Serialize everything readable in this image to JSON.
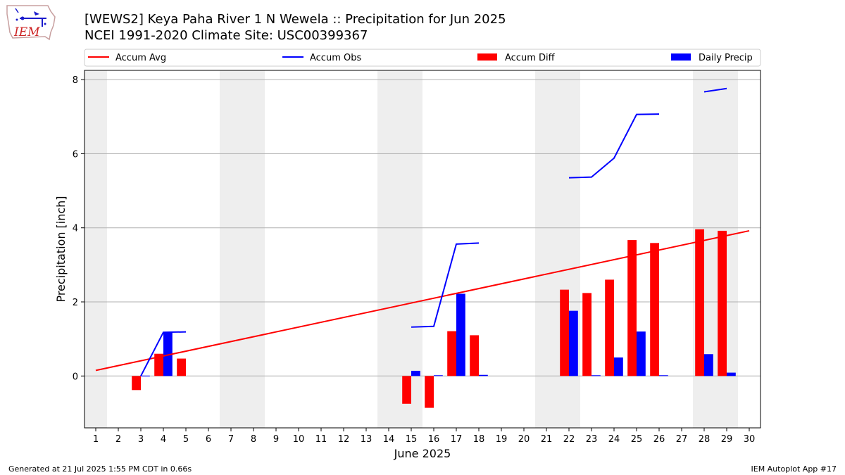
{
  "logo": {
    "text": "IEM"
  },
  "title": {
    "line1": "[WEWS2] Keya Paha River 1 N Wewela :: Precipitation for Jun 2025",
    "line2": "NCEI 1991-2020 Climate Site: USC00399367"
  },
  "footer": {
    "left": "Generated at 21 Jul 2025 1:55 PM CDT in 0.66s",
    "right": "IEM Autoplot App #17"
  },
  "colors": {
    "accum_avg": "#ff0000",
    "accum_obs": "#0000ff",
    "accum_diff": "#ff0000",
    "daily_precip": "#0000ff",
    "weekend_band": "#eeeeee",
    "grid": "#b0b0b0"
  },
  "chart_data": {
    "type": "bar",
    "xlabel": "June 2025",
    "ylabel": "Precipitation [inch]",
    "xlim": [
      0.5,
      30.5
    ],
    "ylim": [
      -1.4,
      8.25
    ],
    "x_ticks": [
      1,
      2,
      3,
      4,
      5,
      6,
      7,
      8,
      9,
      10,
      11,
      12,
      13,
      14,
      15,
      16,
      17,
      18,
      19,
      20,
      21,
      22,
      23,
      24,
      25,
      26,
      27,
      28,
      29,
      30
    ],
    "y_ticks": [
      0,
      2,
      4,
      6,
      8
    ],
    "grid": "y",
    "weekend_bands": [
      [
        0.5,
        1.5
      ],
      [
        6.5,
        8.5
      ],
      [
        13.5,
        15.5
      ],
      [
        20.5,
        22.5
      ],
      [
        27.5,
        29.5
      ]
    ],
    "legend": {
      "position": "top",
      "entries": [
        {
          "label": "Accum Avg",
          "kind": "line",
          "color": "#ff0000"
        },
        {
          "label": "Accum Obs",
          "kind": "line",
          "color": "#0000ff"
        },
        {
          "label": "Accum Diff",
          "kind": "bar",
          "color": "#ff0000"
        },
        {
          "label": "Daily Precip",
          "kind": "bar",
          "color": "#0000ff"
        }
      ]
    },
    "series": [
      {
        "name": "Accum Avg",
        "kind": "line",
        "points": [
          [
            1,
            0.15
          ],
          [
            30,
            3.92
          ]
        ]
      },
      {
        "name": "Accum Obs",
        "kind": "line",
        "segments": [
          [
            [
              3,
              0.0
            ],
            [
              4,
              1.18
            ],
            [
              5,
              1.19
            ]
          ],
          [
            [
              15,
              1.32
            ],
            [
              16,
              1.34
            ],
            [
              17,
              3.56
            ],
            [
              18,
              3.59
            ]
          ],
          [
            [
              22,
              5.35
            ],
            [
              23,
              5.37
            ],
            [
              24,
              5.88
            ],
            [
              25,
              7.06
            ],
            [
              26,
              7.07
            ]
          ],
          [
            [
              28,
              7.67
            ],
            [
              29,
              7.76
            ]
          ]
        ]
      },
      {
        "name": "Accum Diff",
        "kind": "bar",
        "offset": -0.2,
        "points": [
          [
            3,
            -0.38
          ],
          [
            4,
            0.6
          ],
          [
            5,
            0.47
          ],
          [
            15,
            -0.75
          ],
          [
            16,
            -0.86
          ],
          [
            17,
            1.21
          ],
          [
            18,
            1.1
          ],
          [
            22,
            2.33
          ],
          [
            23,
            2.24
          ],
          [
            24,
            2.6
          ],
          [
            25,
            3.67
          ],
          [
            26,
            3.59
          ],
          [
            28,
            3.96
          ],
          [
            29,
            3.92
          ]
        ]
      },
      {
        "name": "Daily Precip",
        "kind": "bar",
        "offset": 0.2,
        "points": [
          [
            3,
            0.01
          ],
          [
            4,
            1.18
          ],
          [
            15,
            0.14
          ],
          [
            16,
            0.02
          ],
          [
            17,
            2.22
          ],
          [
            18,
            0.03
          ],
          [
            22,
            1.76
          ],
          [
            23,
            0.02
          ],
          [
            24,
            0.5
          ],
          [
            25,
            1.2
          ],
          [
            26,
            0.02
          ],
          [
            28,
            0.59
          ],
          [
            29,
            0.09
          ]
        ]
      }
    ]
  }
}
